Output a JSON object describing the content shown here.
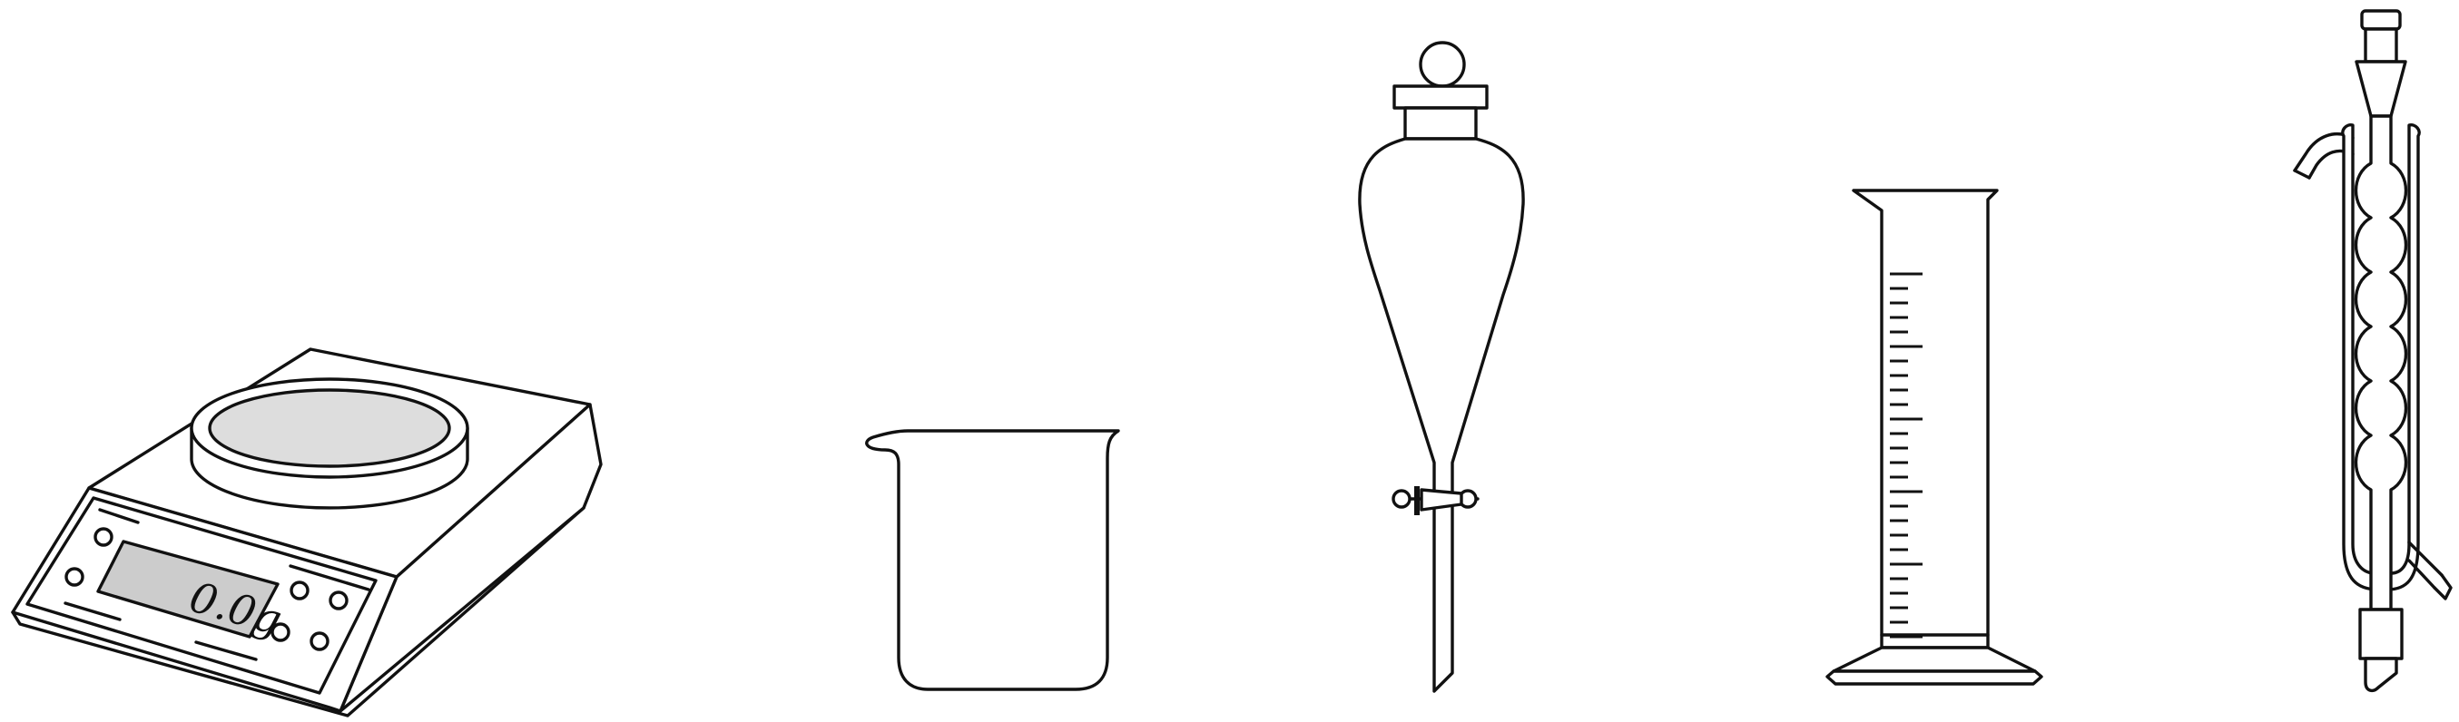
{
  "apparatus": [
    {
      "id": "electronic-balance",
      "display_reading": "0.0g"
    },
    {
      "id": "beaker"
    },
    {
      "id": "separatory-funnel"
    },
    {
      "id": "graduated-cylinder"
    },
    {
      "id": "bulb-condenser"
    }
  ],
  "colors": {
    "outline": "#111111",
    "pan_fill": "#dddddd",
    "display_fill": "#cccccc",
    "background": "#ffffff"
  }
}
